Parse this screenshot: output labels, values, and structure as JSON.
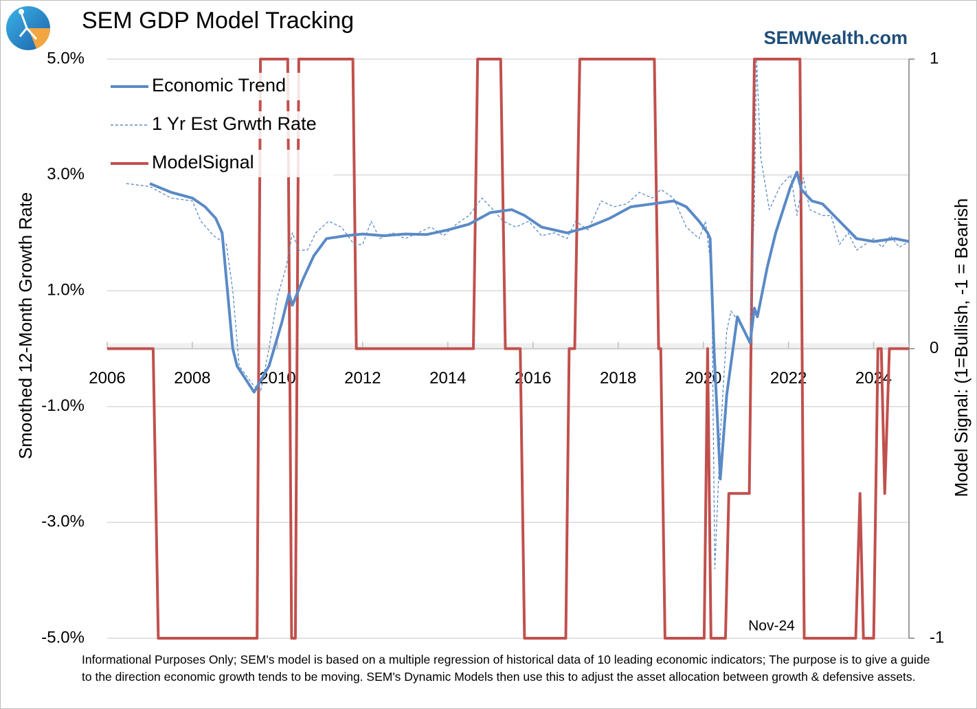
{
  "chart_data": {
    "type": "line",
    "title": "SEM GDP Model Tracking",
    "subtitle": "SEMWealth.com",
    "ylabel": "Smoothed  12-Month Growth Rate",
    "y2label": "Model Signal: (1=Bullish, -1 = Bearish",
    "annotation": "Nov-24",
    "note": "Informational Purposes Only; SEM's model is based on a multiple regression of historical data of 10 leading economic indicators; The purpose is to give a guide to the direction economic growth tends to be moving. SEM's Dynamic Models then use this to adjust the asset allocation between growth & defensive assets.",
    "xlim": [
      2006,
      2024.83
    ],
    "xticks": [
      2006,
      2008,
      2010,
      2012,
      2014,
      2016,
      2018,
      2020,
      2022,
      2024
    ],
    "ylim": [
      -5,
      5
    ],
    "yticks": [
      {
        "value": -5,
        "label": "-5.0%"
      },
      {
        "value": -3,
        "label": "-3.0%"
      },
      {
        "value": -1,
        "label": "-1.0%"
      },
      {
        "value": 1,
        "label": "1.0%"
      },
      {
        "value": 3,
        "label": "3.0%"
      },
      {
        "value": 5,
        "label": "5.0%"
      }
    ],
    "y2lim": [
      -1,
      1
    ],
    "y2ticks": [
      -1,
      0,
      1
    ],
    "grid": true,
    "legend": "upper left",
    "series": [
      {
        "name": "Economic Trend",
        "color": "#5a8ac6",
        "line_style": "solid",
        "x": [
          2007.0,
          2007.5,
          2008.0,
          2008.3,
          2008.55,
          2008.7,
          2008.95,
          2009.05,
          2009.45,
          2009.8,
          2010.1,
          2010.27,
          2010.35,
          2010.6,
          2010.85,
          2011.15,
          2011.6,
          2012.0,
          2012.5,
          2013.0,
          2013.5,
          2014.0,
          2014.5,
          2015.0,
          2015.5,
          2015.8,
          2016.2,
          2016.8,
          2017.3,
          2017.8,
          2018.3,
          2018.8,
          2019.3,
          2019.6,
          2019.9,
          2020.1,
          2020.16,
          2020.25,
          2020.4,
          2020.55,
          2020.8,
          2021.1,
          2021.2,
          2021.27,
          2021.5,
          2021.7,
          2022.05,
          2022.2,
          2022.3,
          2022.55,
          2022.8,
          2023.2,
          2023.6,
          2024.0,
          2024.5,
          2024.83
        ],
        "values": [
          2.85,
          2.7,
          2.6,
          2.45,
          2.25,
          2.0,
          0.0,
          -0.3,
          -0.75,
          -0.3,
          0.45,
          0.95,
          0.75,
          1.2,
          1.6,
          1.9,
          1.95,
          1.98,
          1.95,
          1.98,
          1.97,
          2.05,
          2.15,
          2.35,
          2.4,
          2.3,
          2.1,
          2.0,
          2.1,
          2.25,
          2.45,
          2.5,
          2.55,
          2.45,
          2.2,
          2.0,
          1.9,
          0.0,
          -2.25,
          -0.8,
          0.55,
          0.1,
          0.7,
          0.55,
          1.4,
          2.0,
          2.8,
          3.05,
          2.75,
          2.55,
          2.5,
          2.2,
          1.9,
          1.85,
          1.9,
          1.85
        ]
      },
      {
        "name": "1 Yr Est Grwth Rate",
        "color": "#5a8ac6",
        "line_style": "dashed",
        "x": [
          2006.45,
          2007.0,
          2007.5,
          2008.0,
          2008.2,
          2008.5,
          2008.8,
          2008.95,
          2009.1,
          2009.4,
          2009.6,
          2009.8,
          2010.0,
          2010.2,
          2010.35,
          2010.5,
          2010.7,
          2010.9,
          2011.2,
          2011.5,
          2011.8,
          2012.0,
          2012.2,
          2012.4,
          2012.7,
          2013.0,
          2013.3,
          2013.6,
          2013.9,
          2014.2,
          2014.5,
          2014.8,
          2015.0,
          2015.3,
          2015.6,
          2015.9,
          2016.2,
          2016.5,
          2016.8,
          2017.0,
          2017.3,
          2017.6,
          2017.9,
          2018.2,
          2018.5,
          2018.8,
          2019.0,
          2019.3,
          2019.6,
          2019.9,
          2020.05,
          2020.15,
          2020.2,
          2020.27,
          2020.4,
          2020.55,
          2020.65,
          2020.8,
          2021.1,
          2021.2,
          2021.25,
          2021.35,
          2021.55,
          2021.8,
          2022.05,
          2022.2,
          2022.35,
          2022.5,
          2022.8,
          2023.0,
          2023.2,
          2023.4,
          2023.6,
          2023.8,
          2024.0,
          2024.2,
          2024.4,
          2024.6,
          2024.83
        ],
        "values": [
          2.85,
          2.8,
          2.6,
          2.55,
          2.2,
          1.95,
          1.8,
          1.0,
          -0.3,
          -0.6,
          -0.75,
          0.0,
          0.9,
          1.4,
          2.0,
          1.7,
          1.7,
          2.0,
          2.2,
          2.1,
          1.8,
          1.8,
          2.2,
          1.9,
          2.0,
          1.9,
          2.0,
          2.1,
          1.95,
          2.15,
          2.3,
          2.6,
          2.45,
          2.2,
          2.1,
          2.2,
          1.95,
          2.0,
          1.9,
          2.2,
          2.05,
          2.55,
          2.45,
          2.5,
          2.7,
          2.6,
          2.75,
          2.6,
          2.1,
          1.9,
          2.2,
          1.6,
          1.0,
          -3.8,
          -1.5,
          0.3,
          0.65,
          0.5,
          0.1,
          2.5,
          5.0,
          3.3,
          2.4,
          2.8,
          3.0,
          2.3,
          2.95,
          2.4,
          2.3,
          2.3,
          1.8,
          2.0,
          1.7,
          1.8,
          1.9,
          1.75,
          1.95,
          1.75,
          1.85
        ]
      },
      {
        "name": "ModelSignal",
        "color": "#c0504d",
        "line_style": "solid",
        "axis": "y2",
        "x": [
          2006.0,
          2007.08,
          2007.2,
          2009.52,
          2009.6,
          2010.24,
          2010.33,
          2010.42,
          2010.5,
          2011.77,
          2011.85,
          2014.6,
          2014.7,
          2015.24,
          2015.35,
          2015.7,
          2015.8,
          2016.77,
          2016.85,
          2016.98,
          2017.1,
          2018.85,
          2018.95,
          2019.0,
          2019.1,
          2020.02,
          2020.1,
          2020.18,
          2020.52,
          2020.6,
          2021.08,
          2021.2,
          2022.27,
          2022.37,
          2023.58,
          2023.68,
          2023.76,
          2024.0,
          2024.1,
          2024.18,
          2024.26,
          2024.37,
          2024.83
        ],
        "values": [
          0,
          0,
          -1,
          -1,
          1,
          1,
          -1,
          -1,
          1,
          1,
          0,
          0,
          1,
          1,
          0,
          0,
          -1,
          -1,
          0,
          0,
          1,
          1,
          0,
          0,
          -1,
          -1,
          0,
          -1,
          -1,
          -0.5,
          -0.5,
          1,
          1,
          -1,
          -1,
          -0.5,
          -1,
          -1,
          0,
          0,
          -0.5,
          0,
          0
        ]
      }
    ]
  }
}
